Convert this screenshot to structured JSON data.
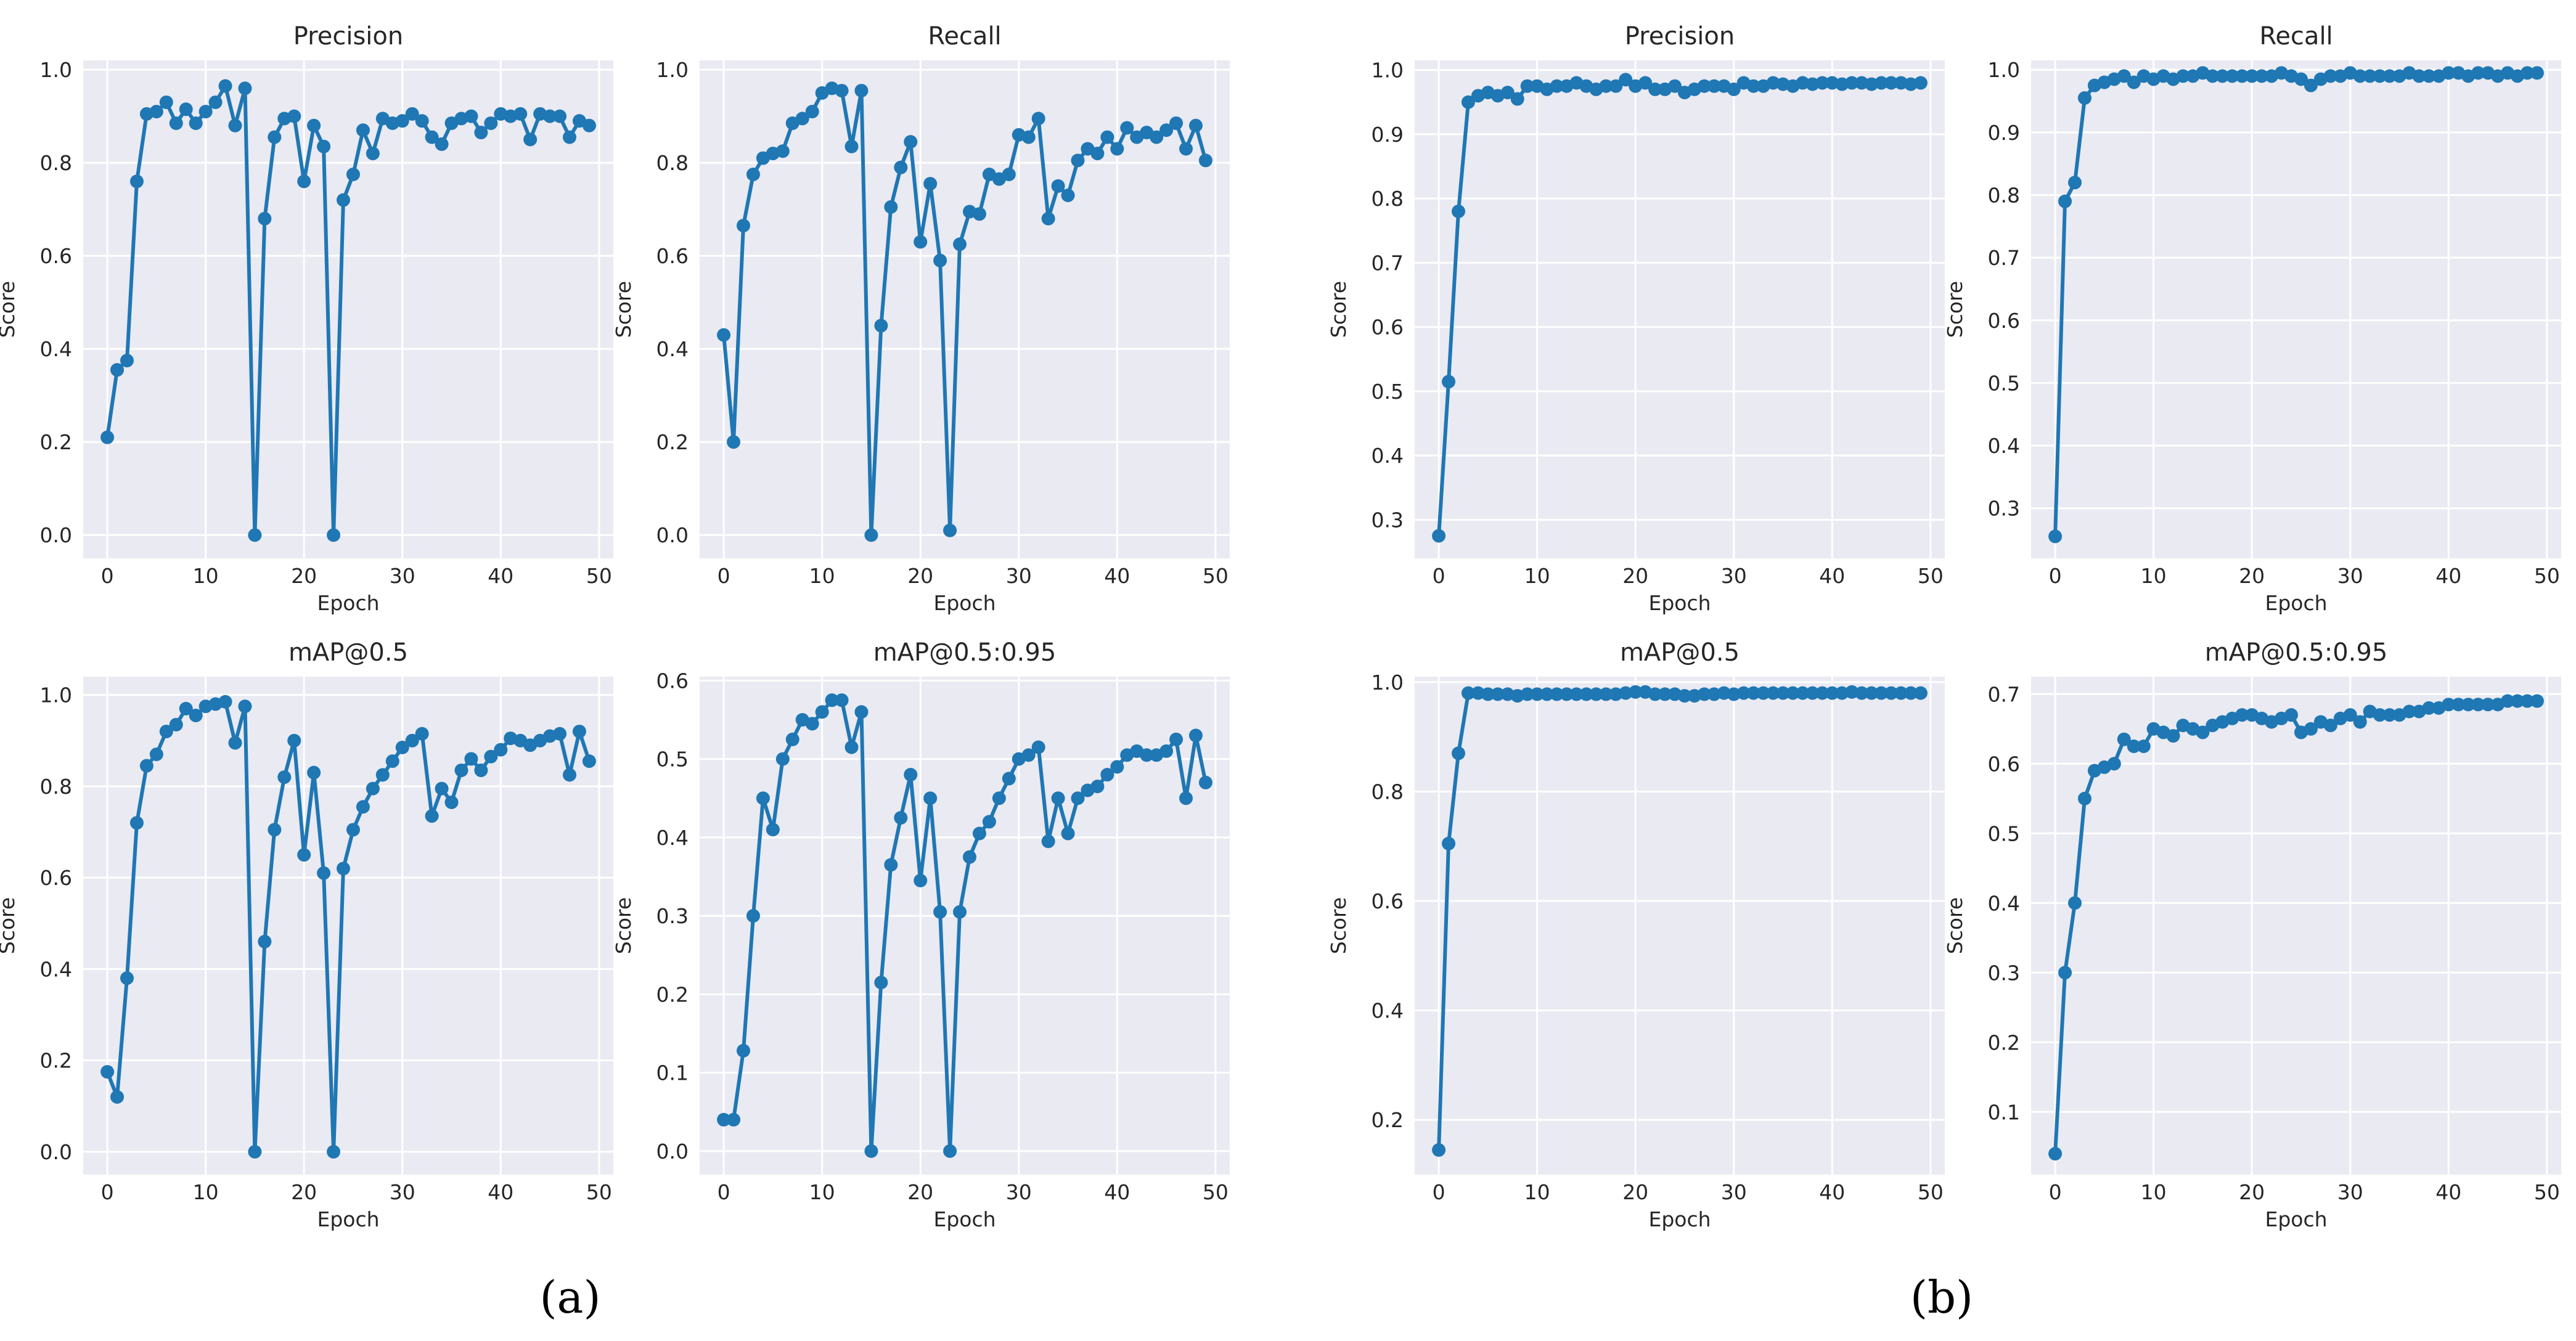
{
  "figure": {
    "panel_labels": [
      "(a)",
      "(b)"
    ]
  },
  "colors": {
    "line": "#1f77b4",
    "plot_bg": "#eaeaf2",
    "grid": "#ffffff",
    "text": "#262626",
    "tick": "#555555"
  },
  "chart_data": [
    {
      "type": "line",
      "group": "a",
      "title": "Precision",
      "xlabel": "Epoch",
      "ylabel": "Score",
      "xlim": [
        -2.45,
        51.45
      ],
      "ylim": [
        -0.05,
        1.02
      ],
      "xticks": [
        0,
        10,
        20,
        30,
        40,
        50
      ],
      "yticks": [
        0.0,
        0.2,
        0.4,
        0.6,
        0.8,
        1.0
      ],
      "ytick_labels": [
        "0.0",
        "0.2",
        "0.4",
        "0.6",
        "0.8",
        "1.0"
      ],
      "x": [
        0,
        1,
        2,
        3,
        4,
        5,
        6,
        7,
        8,
        9,
        10,
        11,
        12,
        13,
        14,
        15,
        16,
        17,
        18,
        19,
        20,
        21,
        22,
        23,
        24,
        25,
        26,
        27,
        28,
        29,
        30,
        31,
        32,
        33,
        34,
        35,
        36,
        37,
        38,
        39,
        40,
        41,
        42,
        43,
        44,
        45,
        46,
        47,
        48,
        49
      ],
      "series": [
        {
          "name": "Precision",
          "values": [
            0.21,
            0.355,
            0.375,
            0.76,
            0.905,
            0.91,
            0.93,
            0.885,
            0.915,
            0.885,
            0.91,
            0.93,
            0.965,
            0.88,
            0.96,
            0.0,
            0.68,
            0.855,
            0.895,
            0.9,
            0.76,
            0.88,
            0.835,
            0.0,
            0.72,
            0.775,
            0.87,
            0.82,
            0.895,
            0.885,
            0.89,
            0.905,
            0.89,
            0.855,
            0.84,
            0.885,
            0.895,
            0.9,
            0.865,
            0.885,
            0.905,
            0.9,
            0.905,
            0.85,
            0.905,
            0.9,
            0.9,
            0.855,
            0.89,
            0.88
          ]
        }
      ]
    },
    {
      "type": "line",
      "group": "a",
      "title": "Recall",
      "xlabel": "Epoch",
      "ylabel": "Score",
      "xlim": [
        -2.45,
        51.45
      ],
      "ylim": [
        -0.05,
        1.02
      ],
      "xticks": [
        0,
        10,
        20,
        30,
        40,
        50
      ],
      "yticks": [
        0.0,
        0.2,
        0.4,
        0.6,
        0.8,
        1.0
      ],
      "ytick_labels": [
        "0.0",
        "0.2",
        "0.4",
        "0.6",
        "0.8",
        "1.0"
      ],
      "x": [
        0,
        1,
        2,
        3,
        4,
        5,
        6,
        7,
        8,
        9,
        10,
        11,
        12,
        13,
        14,
        15,
        16,
        17,
        18,
        19,
        20,
        21,
        22,
        23,
        24,
        25,
        26,
        27,
        28,
        29,
        30,
        31,
        32,
        33,
        34,
        35,
        36,
        37,
        38,
        39,
        40,
        41,
        42,
        43,
        44,
        45,
        46,
        47,
        48,
        49
      ],
      "series": [
        {
          "name": "Recall",
          "values": [
            0.43,
            0.2,
            0.665,
            0.775,
            0.81,
            0.82,
            0.825,
            0.885,
            0.895,
            0.91,
            0.95,
            0.96,
            0.955,
            0.835,
            0.955,
            0.0,
            0.45,
            0.705,
            0.79,
            0.845,
            0.63,
            0.755,
            0.59,
            0.01,
            0.625,
            0.695,
            0.69,
            0.775,
            0.765,
            0.775,
            0.86,
            0.855,
            0.895,
            0.68,
            0.75,
            0.73,
            0.805,
            0.83,
            0.82,
            0.855,
            0.83,
            0.875,
            0.855,
            0.865,
            0.855,
            0.87,
            0.885,
            0.83,
            0.88,
            0.805
          ]
        }
      ]
    },
    {
      "type": "line",
      "group": "b",
      "title": "Precision",
      "xlabel": "Epoch",
      "ylabel": "Score",
      "xlim": [
        -2.45,
        51.45
      ],
      "ylim": [
        0.24,
        1.015
      ],
      "xticks": [
        0,
        10,
        20,
        30,
        40,
        50
      ],
      "yticks": [
        0.3,
        0.4,
        0.5,
        0.6,
        0.7,
        0.8,
        0.9,
        1.0
      ],
      "ytick_labels": [
        "0.3",
        "0.4",
        "0.5",
        "0.6",
        "0.7",
        "0.8",
        "0.9",
        "1.0"
      ],
      "x": [
        0,
        1,
        2,
        3,
        4,
        5,
        6,
        7,
        8,
        9,
        10,
        11,
        12,
        13,
        14,
        15,
        16,
        17,
        18,
        19,
        20,
        21,
        22,
        23,
        24,
        25,
        26,
        27,
        28,
        29,
        30,
        31,
        32,
        33,
        34,
        35,
        36,
        37,
        38,
        39,
        40,
        41,
        42,
        43,
        44,
        45,
        46,
        47,
        48,
        49
      ],
      "series": [
        {
          "name": "Precision",
          "values": [
            0.275,
            0.515,
            0.78,
            0.95,
            0.96,
            0.965,
            0.96,
            0.965,
            0.955,
            0.975,
            0.975,
            0.97,
            0.975,
            0.975,
            0.98,
            0.975,
            0.97,
            0.975,
            0.975,
            0.985,
            0.975,
            0.98,
            0.97,
            0.97,
            0.975,
            0.965,
            0.97,
            0.975,
            0.975,
            0.975,
            0.97,
            0.98,
            0.975,
            0.975,
            0.98,
            0.978,
            0.975,
            0.98,
            0.978,
            0.98,
            0.98,
            0.978,
            0.98,
            0.98,
            0.978,
            0.98,
            0.98,
            0.98,
            0.978,
            0.98
          ]
        }
      ]
    },
    {
      "type": "line",
      "group": "b",
      "title": "Recall",
      "xlabel": "Epoch",
      "ylabel": "Score",
      "xlim": [
        -2.45,
        51.45
      ],
      "ylim": [
        0.22,
        1.015
      ],
      "xticks": [
        0,
        10,
        20,
        30,
        40,
        50
      ],
      "yticks": [
        0.3,
        0.4,
        0.5,
        0.6,
        0.7,
        0.8,
        0.9,
        1.0
      ],
      "ytick_labels": [
        "0.3",
        "0.4",
        "0.5",
        "0.6",
        "0.7",
        "0.8",
        "0.9",
        "1.0"
      ],
      "x": [
        0,
        1,
        2,
        3,
        4,
        5,
        6,
        7,
        8,
        9,
        10,
        11,
        12,
        13,
        14,
        15,
        16,
        17,
        18,
        19,
        20,
        21,
        22,
        23,
        24,
        25,
        26,
        27,
        28,
        29,
        30,
        31,
        32,
        33,
        34,
        35,
        36,
        37,
        38,
        39,
        40,
        41,
        42,
        43,
        44,
        45,
        46,
        47,
        48,
        49
      ],
      "series": [
        {
          "name": "Recall",
          "values": [
            0.255,
            0.79,
            0.82,
            0.955,
            0.975,
            0.98,
            0.985,
            0.99,
            0.98,
            0.99,
            0.985,
            0.99,
            0.985,
            0.99,
            0.99,
            0.995,
            0.99,
            0.99,
            0.99,
            0.99,
            0.99,
            0.99,
            0.99,
            0.995,
            0.99,
            0.985,
            0.975,
            0.985,
            0.99,
            0.99,
            0.995,
            0.99,
            0.99,
            0.99,
            0.99,
            0.99,
            0.995,
            0.99,
            0.99,
            0.99,
            0.995,
            0.995,
            0.99,
            0.995,
            0.995,
            0.99,
            0.995,
            0.99,
            0.995,
            0.995
          ]
        }
      ]
    },
    {
      "type": "line",
      "group": "a",
      "title": "mAP@0.5",
      "xlabel": "Epoch",
      "ylabel": "Score",
      "xlim": [
        -2.45,
        51.45
      ],
      "ylim": [
        -0.05,
        1.04
      ],
      "xticks": [
        0,
        10,
        20,
        30,
        40,
        50
      ],
      "yticks": [
        0.0,
        0.2,
        0.4,
        0.6,
        0.8,
        1.0
      ],
      "ytick_labels": [
        "0.0",
        "0.2",
        "0.4",
        "0.6",
        "0.8",
        "1.0"
      ],
      "x": [
        0,
        1,
        2,
        3,
        4,
        5,
        6,
        7,
        8,
        9,
        10,
        11,
        12,
        13,
        14,
        15,
        16,
        17,
        18,
        19,
        20,
        21,
        22,
        23,
        24,
        25,
        26,
        27,
        28,
        29,
        30,
        31,
        32,
        33,
        34,
        35,
        36,
        37,
        38,
        39,
        40,
        41,
        42,
        43,
        44,
        45,
        46,
        47,
        48,
        49
      ],
      "series": [
        {
          "name": "mAP@0.5",
          "values": [
            0.175,
            0.12,
            0.38,
            0.72,
            0.845,
            0.87,
            0.92,
            0.935,
            0.97,
            0.955,
            0.975,
            0.98,
            0.985,
            0.895,
            0.975,
            0.0,
            0.46,
            0.705,
            0.82,
            0.9,
            0.65,
            0.83,
            0.61,
            0.0,
            0.62,
            0.705,
            0.755,
            0.795,
            0.825,
            0.855,
            0.885,
            0.9,
            0.915,
            0.735,
            0.795,
            0.765,
            0.835,
            0.86,
            0.835,
            0.865,
            0.88,
            0.905,
            0.9,
            0.89,
            0.9,
            0.91,
            0.915,
            0.825,
            0.92,
            0.855
          ]
        }
      ]
    },
    {
      "type": "line",
      "group": "a",
      "title": "mAP@0.5:0.95",
      "xlabel": "Epoch",
      "ylabel": "Score",
      "xlim": [
        -2.45,
        51.45
      ],
      "ylim": [
        -0.03,
        0.605
      ],
      "xticks": [
        0,
        10,
        20,
        30,
        40,
        50
      ],
      "yticks": [
        0.0,
        0.1,
        0.2,
        0.3,
        0.4,
        0.5,
        0.6
      ],
      "ytick_labels": [
        "0.0",
        "0.1",
        "0.2",
        "0.3",
        "0.4",
        "0.5",
        "0.6"
      ],
      "x": [
        0,
        1,
        2,
        3,
        4,
        5,
        6,
        7,
        8,
        9,
        10,
        11,
        12,
        13,
        14,
        15,
        16,
        17,
        18,
        19,
        20,
        21,
        22,
        23,
        24,
        25,
        26,
        27,
        28,
        29,
        30,
        31,
        32,
        33,
        34,
        35,
        36,
        37,
        38,
        39,
        40,
        41,
        42,
        43,
        44,
        45,
        46,
        47,
        48,
        49
      ],
      "series": [
        {
          "name": "mAP@0.5:0.95",
          "values": [
            0.04,
            0.04,
            0.128,
            0.3,
            0.45,
            0.41,
            0.5,
            0.525,
            0.55,
            0.545,
            0.56,
            0.575,
            0.575,
            0.515,
            0.56,
            0.0,
            0.215,
            0.365,
            0.425,
            0.48,
            0.345,
            0.45,
            0.305,
            0.0,
            0.305,
            0.375,
            0.405,
            0.42,
            0.45,
            0.475,
            0.5,
            0.505,
            0.515,
            0.395,
            0.45,
            0.405,
            0.45,
            0.46,
            0.465,
            0.48,
            0.49,
            0.505,
            0.51,
            0.505,
            0.505,
            0.51,
            0.525,
            0.45,
            0.53,
            0.47
          ]
        }
      ]
    },
    {
      "type": "line",
      "group": "b",
      "title": "mAP@0.5",
      "xlabel": "Epoch",
      "ylabel": "Score",
      "xlim": [
        -2.45,
        51.45
      ],
      "ylim": [
        0.1,
        1.01
      ],
      "xticks": [
        0,
        10,
        20,
        30,
        40,
        50
      ],
      "yticks": [
        0.2,
        0.4,
        0.6,
        0.8,
        1.0
      ],
      "ytick_labels": [
        "0.2",
        "0.4",
        "0.6",
        "0.8",
        "1.0"
      ],
      "x": [
        0,
        1,
        2,
        3,
        4,
        5,
        6,
        7,
        8,
        9,
        10,
        11,
        12,
        13,
        14,
        15,
        16,
        17,
        18,
        19,
        20,
        21,
        22,
        23,
        24,
        25,
        26,
        27,
        28,
        29,
        30,
        31,
        32,
        33,
        34,
        35,
        36,
        37,
        38,
        39,
        40,
        41,
        42,
        43,
        44,
        45,
        46,
        47,
        48,
        49
      ],
      "series": [
        {
          "name": "mAP@0.5",
          "values": [
            0.145,
            0.705,
            0.87,
            0.98,
            0.98,
            0.978,
            0.978,
            0.978,
            0.975,
            0.978,
            0.978,
            0.978,
            0.978,
            0.978,
            0.978,
            0.978,
            0.978,
            0.978,
            0.978,
            0.98,
            0.982,
            0.982,
            0.978,
            0.978,
            0.978,
            0.975,
            0.975,
            0.978,
            0.978,
            0.98,
            0.978,
            0.98,
            0.98,
            0.98,
            0.98,
            0.98,
            0.98,
            0.98,
            0.98,
            0.98,
            0.98,
            0.98,
            0.982,
            0.98,
            0.98,
            0.98,
            0.98,
            0.98,
            0.98,
            0.98
          ]
        }
      ]
    },
    {
      "type": "line",
      "group": "b",
      "title": "mAP@0.5:0.95",
      "xlabel": "Epoch",
      "ylabel": "Score",
      "xlim": [
        -2.45,
        51.45
      ],
      "ylim": [
        0.01,
        0.725
      ],
      "xticks": [
        0,
        10,
        20,
        30,
        40,
        50
      ],
      "yticks": [
        0.1,
        0.2,
        0.3,
        0.4,
        0.5,
        0.6,
        0.7
      ],
      "ytick_labels": [
        "0.1",
        "0.2",
        "0.3",
        "0.4",
        "0.5",
        "0.6",
        "0.7"
      ],
      "x": [
        0,
        1,
        2,
        3,
        4,
        5,
        6,
        7,
        8,
        9,
        10,
        11,
        12,
        13,
        14,
        15,
        16,
        17,
        18,
        19,
        20,
        21,
        22,
        23,
        24,
        25,
        26,
        27,
        28,
        29,
        30,
        31,
        32,
        33,
        34,
        35,
        36,
        37,
        38,
        39,
        40,
        41,
        42,
        43,
        44,
        45,
        46,
        47,
        48,
        49
      ],
      "series": [
        {
          "name": "mAP@0.5:0.95",
          "values": [
            0.04,
            0.3,
            0.4,
            0.55,
            0.59,
            0.595,
            0.6,
            0.635,
            0.625,
            0.625,
            0.65,
            0.645,
            0.64,
            0.655,
            0.65,
            0.645,
            0.655,
            0.66,
            0.665,
            0.67,
            0.67,
            0.665,
            0.66,
            0.665,
            0.67,
            0.645,
            0.65,
            0.66,
            0.655,
            0.665,
            0.67,
            0.66,
            0.675,
            0.67,
            0.67,
            0.67,
            0.675,
            0.675,
            0.68,
            0.68,
            0.685,
            0.685,
            0.685,
            0.685,
            0.685,
            0.685,
            0.69,
            0.69,
            0.69,
            0.69
          ]
        }
      ]
    }
  ]
}
